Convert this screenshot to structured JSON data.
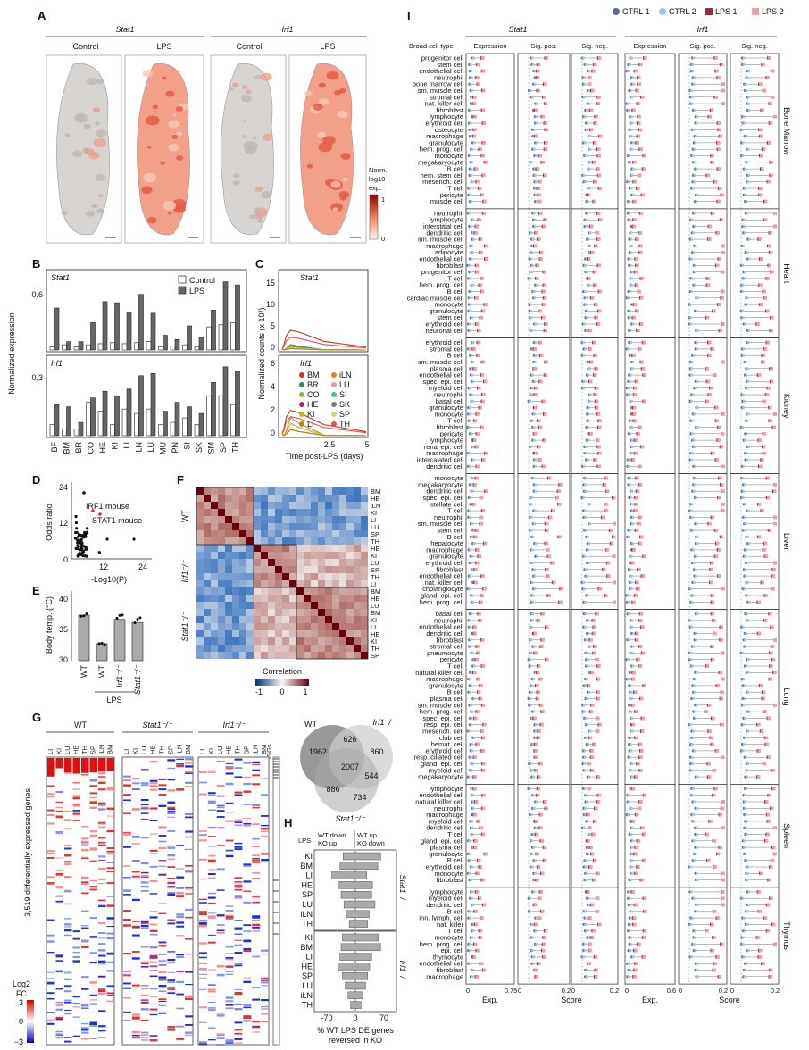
{
  "panels": {
    "A": {
      "label": "A",
      "genes": [
        "Stat1",
        "Irf1"
      ],
      "conditions": [
        "Control",
        "LPS",
        "Control",
        "LPS"
      ],
      "colorbar_title": [
        "Norm.",
        "log10",
        "exp."
      ],
      "colorbar_ticks": [
        "1",
        "0"
      ]
    },
    "B": {
      "label": "B",
      "legend": [
        "Control",
        "LPS"
      ],
      "ylabel": "Normalized expression",
      "tissues": [
        "BF",
        "BM",
        "BR",
        "CO",
        "HE",
        "KI",
        "LI",
        "LN",
        "LU",
        "MU",
        "PN",
        "SI",
        "SK",
        "SM",
        "SP",
        "TH"
      ],
      "stat1": {
        "title": "Stat1",
        "ytick": "0.6",
        "control": [
          0.03,
          0.05,
          0.03,
          0.05,
          0.06,
          0.07,
          0.06,
          0.07,
          0.08,
          0.03,
          0.04,
          0.05,
          0.03,
          0.22,
          0.24,
          0.26
        ],
        "lps": [
          0.4,
          0.08,
          0.08,
          0.26,
          0.46,
          0.45,
          0.36,
          0.53,
          0.35,
          0.14,
          0.1,
          0.23,
          0.12,
          0.38,
          0.65,
          0.62
        ]
      },
      "irf1": {
        "title": "Irf1",
        "ytick": "0.3",
        "control": [
          0.05,
          0.03,
          0.03,
          0.15,
          0.11,
          0.05,
          0.12,
          0.1,
          0.12,
          0.05,
          0.06,
          0.08,
          0.05,
          0.18,
          0.18,
          0.14
        ],
        "lps": [
          0.14,
          0.13,
          0.06,
          0.17,
          0.2,
          0.18,
          0.21,
          0.27,
          0.28,
          0.11,
          0.15,
          0.13,
          0.1,
          0.24,
          0.31,
          0.29
        ]
      }
    },
    "C": {
      "label": "C",
      "ylabel": "Normalized counts (x 10³)",
      "xlabel": "Time post-LPS (days)",
      "xticks": [
        "2.5",
        "5"
      ],
      "stat1": {
        "title": "Stat1",
        "yticks": [
          "0",
          "5",
          "10",
          "15"
        ]
      },
      "irf1": {
        "title": "Irf1",
        "yticks": [
          "0",
          "2",
          "4",
          "6"
        ]
      },
      "legend": [
        {
          "name": "BM",
          "color": "#c0392b"
        },
        {
          "name": "iLN",
          "color": "#e08020"
        },
        {
          "name": "BR",
          "color": "#2e8b57"
        },
        {
          "name": "LU",
          "color": "#c8a2c8"
        },
        {
          "name": "CO",
          "color": "#8fbc3f"
        },
        {
          "name": "SI",
          "color": "#48c0a0"
        },
        {
          "name": "HE",
          "color": "#b0207a"
        },
        {
          "name": "SK",
          "color": "#7a7a7a"
        },
        {
          "name": "KI",
          "color": "#d4b000"
        },
        {
          "name": "SP",
          "color": "#c8d870"
        },
        {
          "name": "LI",
          "color": "#b8860b"
        },
        {
          "name": "TH",
          "color": "#e05050"
        }
      ]
    },
    "D": {
      "label": "D",
      "ylabel": "Odds ratio",
      "xlabel": "-Log10(P)",
      "yticks": [
        "0",
        "12",
        "24"
      ],
      "xticks": [
        "12",
        "24"
      ],
      "annotations": [
        "IRF1 mouse",
        "STAT1 mouse"
      ]
    },
    "E": {
      "label": "E",
      "ylabel": "Body temp. (°C)",
      "yticks": [
        "30",
        "35",
        "40"
      ],
      "groups": [
        "WT",
        "WT",
        "Irf1⁻/⁻",
        "Stat1⁻/⁻"
      ],
      "values": [
        37.5,
        32.8,
        36.8,
        36.3
      ],
      "bracket": "LPS"
    },
    "F": {
      "label": "F",
      "blocks": [
        "WT",
        "Irf1⁻/⁻",
        "Stat1⁻/⁻"
      ],
      "row_labels": [
        "BM",
        "HE",
        "iLN",
        "KI",
        "LI",
        "LU",
        "SP",
        "TH",
        "HE",
        "KI",
        "LU",
        "SP",
        "TH",
        "LI",
        "BM",
        "HE",
        "LU",
        "BM",
        "KI",
        "LI",
        "HE",
        "KI",
        "TH",
        "SP"
      ],
      "colorbar_title": "Correlation",
      "colorbar_ticks": [
        "-1",
        "0",
        "1"
      ]
    },
    "G": {
      "label": "G",
      "groups": [
        "WT",
        "Stat1⁻/⁻",
        "Irf1⁻/⁻"
      ],
      "columns": [
        "LI",
        "KI",
        "LU",
        "HE",
        "TH",
        "SP",
        "iLN",
        "BM"
      ],
      "isg_label": "ISGs",
      "ylabel": "3,519 differentially expressed genes",
      "colorbar_title": [
        "Log2",
        "FC"
      ],
      "colorbar_ticks": [
        "3",
        "0",
        "−3"
      ],
      "venn": {
        "wt": "WT",
        "irf1": "Irf1⁻/⁻",
        "stat1": "Stat1⁻/⁻",
        "counts": [
          "1962",
          "626",
          "860",
          "2007",
          "886",
          "544",
          "734"
        ]
      }
    },
    "H": {
      "label": "H",
      "legend_lps": "LPS",
      "legend_left": [
        "WT down",
        "KO up"
      ],
      "legend_right": [
        "WT up",
        "KO down"
      ],
      "xticks": [
        "-70",
        "0",
        "70"
      ],
      "xlabel": [
        "% WT LPS DE genes",
        "reversed in KO"
      ],
      "stat1": {
        "title": "Stat1⁻/⁻",
        "tissues": [
          "KI",
          "BM",
          "LI",
          "HE",
          "SP",
          "LU",
          "iLN",
          "TH"
        ],
        "down": [
          -30,
          -38,
          -58,
          -40,
          -35,
          -28,
          -22,
          -15
        ],
        "up": [
          62,
          55,
          28,
          42,
          40,
          48,
          34,
          30
        ]
      },
      "irf1": {
        "title": "Irf1⁻/⁻",
        "tissues": [
          "KI",
          "BM",
          "LI",
          "HE",
          "SP",
          "LU",
          "iLN",
          "TH"
        ],
        "down": [
          -32,
          -35,
          -38,
          -42,
          -32,
          -25,
          -18,
          -12
        ],
        "up": [
          56,
          62,
          40,
          35,
          30,
          25,
          18,
          14
        ]
      }
    },
    "I": {
      "label": "I",
      "legend": [
        {
          "name": "CTRL 1",
          "color": "#5a6e8e",
          "shape": "circle"
        },
        {
          "name": "CTRL 2",
          "color": "#9cc8ec",
          "shape": "circle"
        },
        {
          "name": "LPS 1",
          "color": "#9b2d3a",
          "shape": "square"
        },
        {
          "name": "LPS 2",
          "color": "#f0a0a8",
          "shape": "square"
        }
      ],
      "genes": [
        "Stat1",
        "Irf1"
      ],
      "col_header": "Broad cell type",
      "column_titles": [
        "Expression",
        "Sig. pos.",
        "Sig. neg.",
        "Expression",
        "Sig. pos.",
        "Sig. neg."
      ],
      "axis_ticks": [
        [
          "0",
          "0.75"
        ],
        [
          "0",
          "0.2"
        ],
        [
          "0",
          "0.2"
        ],
        [
          "0",
          "0.6"
        ],
        [
          "0",
          "0.2"
        ],
        [
          "0",
          "0.2"
        ]
      ],
      "axis_titles": [
        "Exp.",
        "Score",
        "Exp.",
        "Score"
      ],
      "tissues": [
        {
          "name": "Bone Marrow",
          "cells": [
            "progenitor cell",
            "stem cell",
            "endothelial cell",
            "neutrophil",
            "bone marrow cell",
            "sm. muscle cell",
            "stromal cell",
            "nat. killer cell",
            "fibroblast",
            "lymphocyte",
            "erythroid cell",
            "osteocyte",
            "macrophage",
            "granulocyte",
            "hem. prog. cell",
            "monocyte",
            "megakaryocyte",
            "B cell",
            "hem. stem cell",
            "mesench. cell",
            "T cell",
            "pericyte",
            "muscle cell"
          ]
        },
        {
          "name": "Heart",
          "cells": [
            "neutrophil",
            "lymphocyte",
            "interstitial cell",
            "dendritic cell",
            "sm. muscle cell",
            "macrophage",
            "adipocyte",
            "endothelial cell",
            "fibroblast",
            "progenitor cell",
            "T cell",
            "hem. prog. cell",
            "B cell",
            "cardiac muscle cell",
            "monocyte",
            "granulocyte",
            "stem cell",
            "erythroid cell",
            "neuronal cell"
          ]
        },
        {
          "name": "Kidney",
          "cells": [
            "erythroid cell",
            "stromal cell",
            "B cell",
            "sm. muscle cell",
            "plasma cell",
            "endothelial cell",
            "spec. epi. cell",
            "myeloid cell",
            "neutrophil",
            "basal cell",
            "granulocyte",
            "monocyte",
            "T cell",
            "fibroblast",
            "pericyte",
            "lymphocyte",
            "renal epi. cell",
            "macrophage",
            "intercalated cell",
            "dendritic cell"
          ]
        },
        {
          "name": "Liver",
          "cells": [
            "monocyte",
            "megakaryocyte",
            "dendritic cell",
            "spec. epi. cell",
            "stellate cell",
            "T cell",
            "neutrophil",
            "sm. muscle cell",
            "stem cell",
            "B cell",
            "hepatocyte",
            "macrophage",
            "granulocyte",
            "erythroid cell",
            "fibroblast",
            "endothelial cell",
            "nat. killer cell",
            "cholangiocyte",
            "gland. epi. cell",
            "hem. prog. cell"
          ]
        },
        {
          "name": "Lung",
          "cells": [
            "basal cell",
            "neutrophil",
            "endothelial cell",
            "dendritic cell",
            "fibroblast",
            "stromal cell",
            "pneumocyte",
            "pericyte",
            "T cell",
            "natural killer cell",
            "macrophage",
            "granulocyte",
            "B cell",
            "plasma cell",
            "sm. muscle cell",
            "hem. prog. cell",
            "spec. epi. cell",
            "resp. epi. cell",
            "mesench. cell",
            "club cell",
            "hemat. cell",
            "erythroid cell",
            "resp. ciliated cell",
            "gland. epi. cell",
            "myeloid cell",
            "megakaryocyte"
          ]
        },
        {
          "name": "Spleen",
          "cells": [
            "lymphocyte",
            "endothelial cell",
            "natural killer cell",
            "neutrophil",
            "macrophage",
            "myeloid cell",
            "dendritic cell",
            "T cell",
            "gland. epi. cell",
            "plasma cell",
            "granulocyte",
            "B cell",
            "erythroid cell",
            "monocyte",
            "fibroblast"
          ]
        },
        {
          "name": "Thymus",
          "cells": [
            "lymphocyte",
            "myeloid cell",
            "dendritic cell",
            "B cell",
            "inn. lymph. cell",
            "nat. killer",
            "T cell",
            "monocyte",
            "hem. prog. cell",
            "epi. cell",
            "thymocyte",
            "endothelial cell",
            "fibroblast",
            "macrophage"
          ]
        }
      ]
    }
  }
}
